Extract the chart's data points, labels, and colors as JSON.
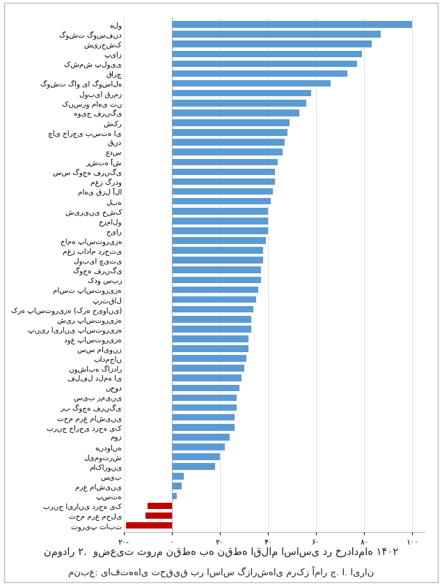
{
  "title": "نمودار ۲.  وضعیت تورم نقطه به نقطه اقلام اساسی در خردادماه ۱۴۰۲",
  "subtitle": "منبع: یافته‌های تحقیق بر اساس گزارش‌های مرکز آمار ج. ا. ایران",
  "categories": [
    "هلو",
    "گوشت گوسفند",
    "شیرخشک",
    "پیاز",
    "کشمش پلویی",
    "قارچ",
    "گوشت گاو یا گوساله",
    "لوبیا قرمز",
    "کنسرو ماهی تن",
    "هویج فرنگی",
    "شکر",
    "چای خارجی بسته ای",
    "قند",
    "عدس",
    "رشته آش",
    "سس گوجه فرنگی",
    "مغز گردو",
    "ماهی قزل آلا",
    "لبه",
    "شیرینی خشک",
    "خرمالو",
    "خیار",
    "خامه پاستوریزه",
    "مغز بادام درختی",
    "لوبیا چیتی",
    "گوجه فرنگی",
    "کدو سبز",
    "ماست پاستوریزه",
    "پرتقال",
    "کره پاستوریزه (کره حیوانی)",
    "شیر پاستوریزه",
    "پنیر ایرانی پاستوریزه",
    "دوغ پاستوریزه",
    "سس مایونز",
    "بادمجان",
    "نوشابه گازدار",
    "فلفل دلمه ای",
    "نخود",
    "سیب زمینی",
    "رب گوجه فرنگی",
    "تخم مرغ ماشینی",
    "برنج خارجی درجه یک",
    "موز",
    "هندوانه",
    "لیموترش",
    "ماکارونی",
    "سیب",
    "مرغ ماشینی",
    "پسته",
    "برنج ایرانی درجه یک",
    "تخم مرغ محلی",
    "توریپ ثابت"
  ],
  "values": [
    100,
    87,
    83,
    79,
    77,
    73,
    66,
    58,
    56,
    53,
    49,
    48,
    47,
    46,
    44,
    43,
    43,
    42,
    41,
    40,
    40,
    40,
    39,
    38,
    38,
    37,
    37,
    36,
    35,
    34,
    33,
    33,
    32,
    32,
    31,
    30,
    29,
    28,
    27,
    27,
    26,
    26,
    24,
    22,
    20,
    18,
    5,
    4,
    2,
    -10,
    -11,
    -19
  ],
  "bar_colors": [
    "#5b9bd5",
    "#5b9bd5",
    "#5b9bd5",
    "#5b9bd5",
    "#5b9bd5",
    "#5b9bd5",
    "#5b9bd5",
    "#5b9bd5",
    "#5b9bd5",
    "#5b9bd5",
    "#5b9bd5",
    "#5b9bd5",
    "#5b9bd5",
    "#5b9bd5",
    "#5b9bd5",
    "#5b9bd5",
    "#5b9bd5",
    "#5b9bd5",
    "#5b9bd5",
    "#5b9bd5",
    "#5b9bd5",
    "#5b9bd5",
    "#5b9bd5",
    "#5b9bd5",
    "#5b9bd5",
    "#5b9bd5",
    "#5b9bd5",
    "#5b9bd5",
    "#5b9bd5",
    "#5b9bd5",
    "#5b9bd5",
    "#5b9bd5",
    "#5b9bd5",
    "#5b9bd5",
    "#5b9bd5",
    "#5b9bd5",
    "#5b9bd5",
    "#5b9bd5",
    "#5b9bd5",
    "#5b9bd5",
    "#5b9bd5",
    "#5b9bd5",
    "#5b9bd5",
    "#5b9bd5",
    "#5b9bd5",
    "#5b9bd5",
    "#5b9bd5",
    "#5b9bd5",
    "#5b9bd5",
    "#c00000",
    "#c00000",
    "#c00000"
  ],
  "xlim": [
    -20,
    105
  ],
  "xticks": [
    -20,
    0,
    20,
    40,
    60,
    80,
    100
  ],
  "xtick_labels": [
    "۲۰-",
    "۰",
    "۲۰",
    "۴۰",
    "۶۰",
    "۸۰",
    "۱۰۰"
  ],
  "fig_bg": "#ffffff",
  "plot_bg": "#ffffff",
  "grid_color": "#dddddd",
  "bar_height": 0.68,
  "title_fontsize": 10.5,
  "subtitle_fontsize": 9.5,
  "tick_fontsize": 8,
  "label_fontsize": 7.5
}
